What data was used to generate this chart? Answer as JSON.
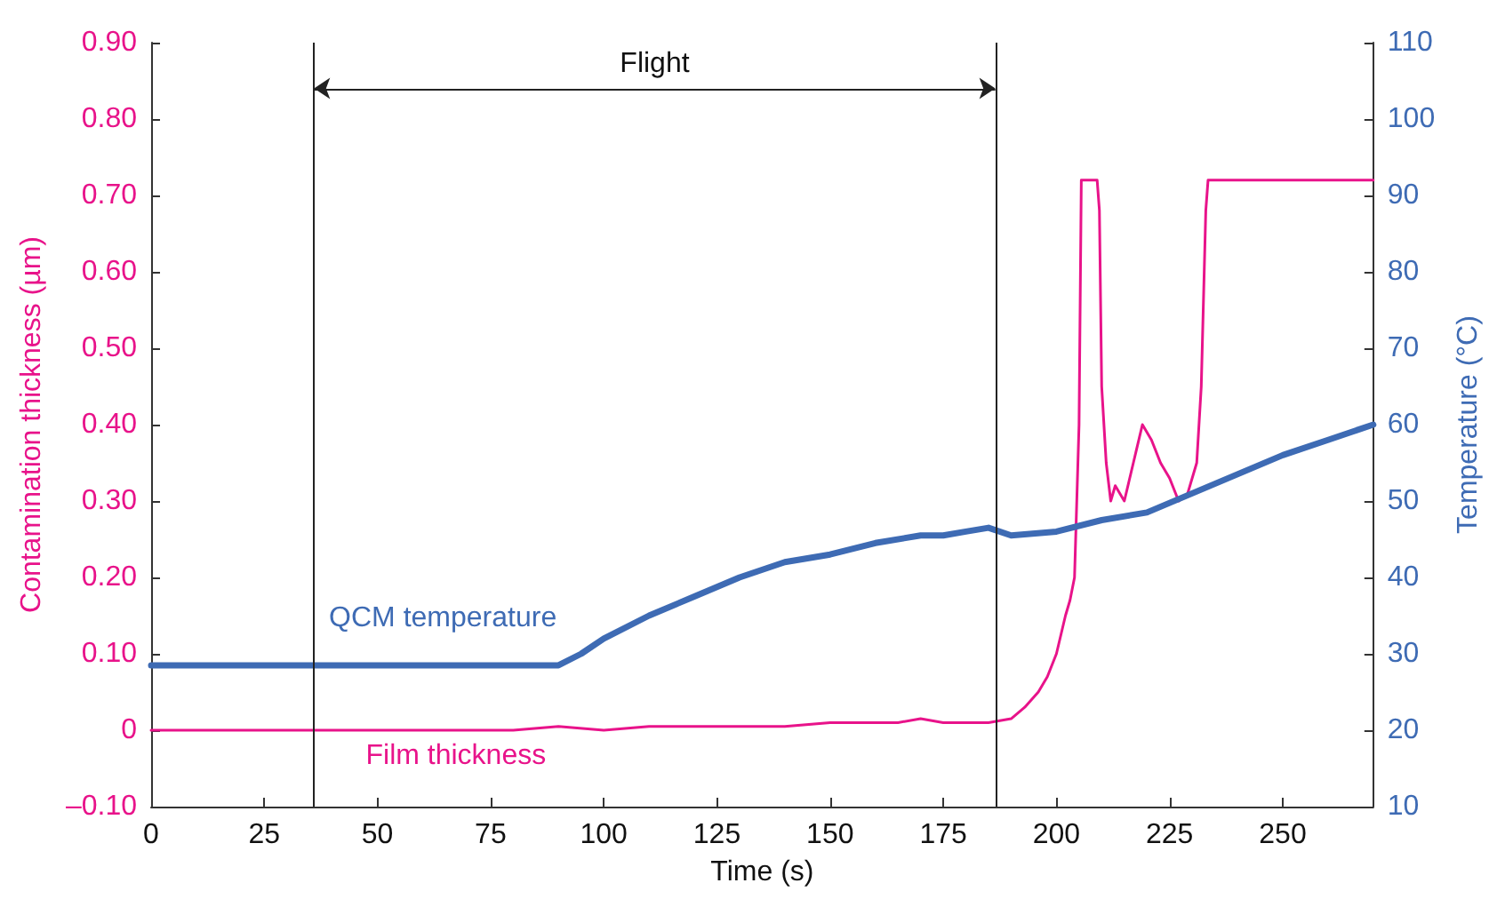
{
  "chart_data": {
    "type": "line",
    "xlabel": "Time (s)",
    "ylabel": "Contamination thickness (µm)",
    "y2label": "Temperature (°C)",
    "xlim": [
      0,
      270
    ],
    "xticks": [
      0,
      25,
      50,
      75,
      100,
      125,
      150,
      175,
      200,
      225,
      250
    ],
    "ylim": [
      -0.1,
      0.9
    ],
    "yticks": [
      {
        "value": -0.1,
        "label": "–0.10"
      },
      {
        "value": 0,
        "label": "0"
      },
      {
        "value": 0.1,
        "label": "0.10"
      },
      {
        "value": 0.2,
        "label": "0.20"
      },
      {
        "value": 0.3,
        "label": "0.30"
      },
      {
        "value": 0.4,
        "label": "0.40"
      },
      {
        "value": 0.5,
        "label": "0.50"
      },
      {
        "value": 0.6,
        "label": "0.60"
      },
      {
        "value": 0.7,
        "label": "0.70"
      },
      {
        "value": 0.8,
        "label": "0.80"
      },
      {
        "value": 0.9,
        "label": "0.90"
      }
    ],
    "y2lim": [
      10,
      110
    ],
    "y2ticks": [
      10,
      20,
      30,
      40,
      50,
      60,
      70,
      80,
      90,
      100,
      110
    ],
    "grid": false,
    "legend": false,
    "marker": "none",
    "line_style": "solid",
    "series": [
      {
        "name": "Film thickness",
        "color": "#e8138a",
        "x": [
          0,
          10,
          20,
          30,
          40,
          50,
          60,
          70,
          80,
          90,
          100,
          110,
          120,
          130,
          140,
          150,
          160,
          165,
          170,
          175,
          180,
          185,
          190,
          193,
          196,
          198,
          200,
          202,
          203,
          204,
          205,
          205.5,
          209,
          209.5,
          210,
          211,
          212,
          213,
          215,
          217,
          219,
          221,
          223,
          225,
          227,
          229,
          231,
          232,
          233,
          233.5,
          270
        ],
        "values": [
          0,
          0,
          0,
          0,
          0,
          0,
          0,
          0,
          0,
          0.005,
          0,
          0.005,
          0.005,
          0.005,
          0.005,
          0.01,
          0.01,
          0.01,
          0.015,
          0.01,
          0.01,
          0.01,
          0.015,
          0.03,
          0.05,
          0.07,
          0.1,
          0.15,
          0.17,
          0.2,
          0.4,
          0.72,
          0.72,
          0.68,
          0.45,
          0.35,
          0.3,
          0.32,
          0.3,
          0.35,
          0.4,
          0.38,
          0.35,
          0.33,
          0.3,
          0.31,
          0.35,
          0.45,
          0.68,
          0.72,
          0.72
        ]
      },
      {
        "name": "QCM temperature",
        "color": "#3e6bb4",
        "axis": "y2",
        "x": [
          0,
          90,
          95,
          100,
          110,
          120,
          130,
          140,
          150,
          160,
          170,
          175,
          180,
          185,
          190,
          200,
          210,
          220,
          230,
          240,
          250,
          260,
          270
        ],
        "values": [
          28.5,
          28.5,
          30,
          32,
          35,
          37.5,
          40,
          42,
          43,
          44.5,
          45.5,
          45.5,
          46,
          46.5,
          45.5,
          46,
          47.5,
          48.5,
          51,
          53.5,
          56,
          58,
          60
        ]
      }
    ],
    "ref_lines": [
      {
        "axis": "x",
        "value": 36
      },
      {
        "axis": "x",
        "value": 186.5
      }
    ],
    "annotations": [
      "Flight"
    ]
  }
}
